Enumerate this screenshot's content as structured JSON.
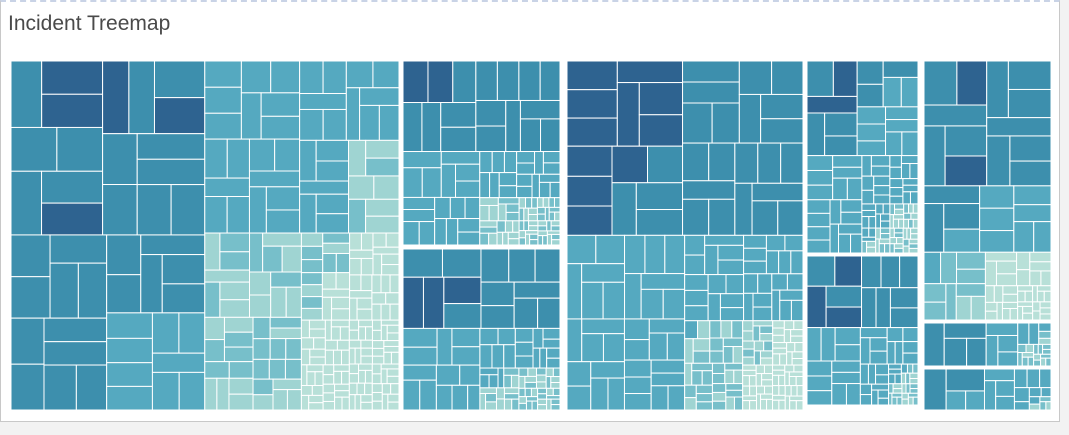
{
  "title": "Incident Treemap",
  "colors": {
    "base": "#b8e0d8",
    "light": "#9fd4d2",
    "mid": "#77bfca",
    "teal": "#55a9c0",
    "deep": "#3d8fad",
    "navy": "#2e6390",
    "border": "#ffffff"
  },
  "chart_data": {
    "type": "treemap",
    "encoding": "cell size and color intensity represent incident volume; no labels are printed",
    "groups": [
      {
        "seed": 11,
        "weight": 10,
        "cells": 260,
        "hot": [
          0.12,
          0.3
        ]
      },
      {
        "seed": 23,
        "weight": 2.4,
        "cells": 110,
        "hot": [
          0.04,
          0.14
        ]
      },
      {
        "seed": 37,
        "weight": 2.4,
        "cells": 90,
        "hot": [
          0.03,
          0.1
        ]
      },
      {
        "seed": 41,
        "weight": 6,
        "cells": 210,
        "hot": [
          0.06,
          0.16
        ]
      },
      {
        "seed": 53,
        "weight": 2.2,
        "cells": 110,
        "hot": [
          0.02,
          0.06
        ]
      },
      {
        "seed": 59,
        "weight": 1.1,
        "cells": 70,
        "hot": [
          0.02,
          0.06
        ]
      },
      {
        "seed": 61,
        "weight": 2.6,
        "cells": 70,
        "hot": [
          0.2,
          0.35
        ]
      },
      {
        "seed": 67,
        "weight": 0.8,
        "cells": 28,
        "hot": [
          0.04,
          0.1
        ]
      },
      {
        "seed": 71,
        "weight": 0.6,
        "cells": 20,
        "hot": [
          0.03,
          0.08
        ]
      }
    ]
  }
}
